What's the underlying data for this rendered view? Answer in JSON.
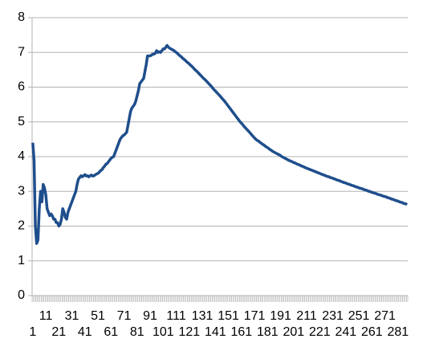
{
  "chart_data": {
    "type": "line",
    "color": "#1f4e8c",
    "ylim": [
      0,
      8
    ],
    "yticks": [
      0,
      1,
      2,
      3,
      4,
      5,
      6,
      7,
      8
    ],
    "grid": true,
    "categories": [
      "1",
      null,
      null,
      null,
      null,
      null,
      null,
      null,
      null,
      null,
      "11",
      null,
      null,
      null,
      null,
      null,
      null,
      null,
      null,
      null,
      "21",
      null,
      null,
      null,
      null,
      null,
      null,
      null,
      null,
      null,
      "31",
      null,
      null,
      null,
      null,
      null,
      null,
      null,
      null,
      null,
      "41",
      null,
      null,
      null,
      null,
      null,
      null,
      null,
      null,
      null,
      "51",
      null,
      null,
      null,
      null,
      null,
      null,
      null,
      null,
      null,
      "61",
      null,
      null,
      null,
      null,
      null,
      null,
      null,
      null,
      null,
      "71",
      null,
      null,
      null,
      null,
      null,
      null,
      null,
      null,
      null,
      "81",
      null,
      null,
      null,
      null,
      null,
      null,
      null,
      null,
      null,
      "91",
      null,
      null,
      null,
      null,
      null,
      null,
      null,
      null,
      null,
      "101",
      null,
      null,
      null,
      null,
      null,
      null,
      null,
      null,
      null,
      "111",
      null,
      null,
      null,
      null,
      null,
      null,
      null,
      null,
      null,
      "121",
      null,
      null,
      null,
      null,
      null,
      null,
      null,
      null,
      null,
      "131",
      null,
      null,
      null,
      null,
      null,
      null,
      null,
      null,
      null,
      "141",
      null,
      null,
      null,
      null,
      null,
      null,
      null,
      null,
      null,
      "151",
      null,
      null,
      null,
      null,
      null,
      null,
      null,
      null,
      null,
      "161",
      null,
      null,
      null,
      null,
      null,
      null,
      null,
      null,
      null,
      "171",
      null,
      null,
      null,
      null,
      null,
      null,
      null,
      null,
      null,
      "181",
      null,
      null,
      null,
      null,
      null,
      null,
      null,
      null,
      null,
      "191",
      null,
      null,
      null,
      null,
      null,
      null,
      null,
      null,
      null,
      "201",
      null,
      null,
      null,
      null,
      null,
      null,
      null,
      null,
      null,
      "211",
      null,
      null,
      null,
      null,
      null,
      null,
      null,
      null,
      null,
      "221",
      null,
      null,
      null,
      null,
      null,
      null,
      null,
      null,
      null,
      "231",
      null,
      null,
      null,
      null,
      null,
      null,
      null,
      null,
      null,
      "241",
      null,
      null,
      null,
      null,
      null,
      null,
      null,
      null,
      null,
      "251",
      null,
      null,
      null,
      null,
      null,
      null,
      null,
      null,
      null,
      "261",
      null,
      null,
      null,
      null,
      null,
      null,
      null,
      null,
      null,
      "271",
      null,
      null,
      null,
      null,
      null,
      null,
      null,
      null,
      null,
      "281",
      null,
      null,
      null,
      null,
      null,
      null,
      null
    ],
    "values": [
      4.4,
      3.9,
      2.0,
      1.5,
      1.6,
      2.5,
      3.0,
      2.7,
      3.2,
      3.1,
      2.9,
      2.5,
      2.4,
      2.3,
      2.35,
      2.3,
      2.2,
      2.2,
      2.1,
      2.1,
      2.0,
      2.05,
      2.2,
      2.5,
      2.4,
      2.25,
      2.2,
      2.4,
      2.5,
      2.6,
      2.7,
      2.8,
      2.9,
      3.0,
      3.2,
      3.35,
      3.4,
      3.45,
      3.42,
      3.45,
      3.48,
      3.44,
      3.45,
      3.42,
      3.45,
      3.47,
      3.44,
      3.45,
      3.48,
      3.5,
      3.52,
      3.55,
      3.6,
      3.62,
      3.68,
      3.72,
      3.78,
      3.8,
      3.85,
      3.9,
      3.95,
      3.98,
      4.0,
      4.1,
      4.2,
      4.3,
      4.4,
      4.5,
      4.55,
      4.6,
      4.62,
      4.66,
      4.7,
      4.9,
      5.1,
      5.3,
      5.4,
      5.45,
      5.5,
      5.6,
      5.75,
      5.9,
      6.1,
      6.15,
      6.2,
      6.25,
      6.45,
      6.65,
      6.9,
      6.9,
      6.9,
      6.92,
      6.95,
      6.95,
      6.98,
      7.05,
      7.0,
      7.02,
      7.0,
      7.05,
      7.1,
      7.1,
      7.15,
      7.2,
      7.15,
      7.12,
      7.1,
      7.08,
      7.06,
      7.03,
      7.0,
      6.97,
      6.93,
      6.9,
      6.87,
      6.83,
      6.8,
      6.77,
      6.73,
      6.7,
      6.67,
      6.63,
      6.6,
      6.56,
      6.52,
      6.48,
      6.45,
      6.41,
      6.37,
      6.33,
      6.29,
      6.25,
      6.22,
      6.18,
      6.14,
      6.1,
      6.06,
      6.02,
      5.97,
      5.93,
      5.89,
      5.85,
      5.81,
      5.77,
      5.73,
      5.68,
      5.64,
      5.6,
      5.55,
      5.5,
      5.45,
      5.4,
      5.35,
      5.3,
      5.25,
      5.2,
      5.15,
      5.1,
      5.05,
      5.0,
      4.96,
      4.92,
      4.87,
      4.83,
      4.79,
      4.75,
      4.71,
      4.67,
      4.62,
      4.58,
      4.54,
      4.5,
      4.47,
      4.45,
      4.42,
      4.39,
      4.36,
      4.34,
      4.31,
      4.28,
      4.26,
      4.23,
      4.2,
      4.18,
      4.15,
      4.13,
      4.11,
      4.09,
      4.07,
      4.05,
      4.03,
      4.0,
      3.98,
      3.96,
      3.94,
      3.92,
      3.9,
      3.88,
      3.87,
      3.85,
      3.83,
      3.82,
      3.8,
      3.78,
      3.77,
      3.75,
      3.73,
      3.72,
      3.7,
      3.68,
      3.67,
      3.65,
      3.64,
      3.62,
      3.61,
      3.59,
      3.58,
      3.56,
      3.55,
      3.53,
      3.52,
      3.5,
      3.49,
      3.47,
      3.46,
      3.44,
      3.43,
      3.42,
      3.4,
      3.39,
      3.38,
      3.36,
      3.35,
      3.33,
      3.32,
      3.31,
      3.29,
      3.28,
      3.26,
      3.25,
      3.24,
      3.22,
      3.21,
      3.2,
      3.18,
      3.17,
      3.16,
      3.14,
      3.13,
      3.12,
      3.1,
      3.09,
      3.08,
      3.07,
      3.05,
      3.04,
      3.03,
      3.01,
      3.0,
      2.99,
      2.97,
      2.96,
      2.95,
      2.94,
      2.92,
      2.91,
      2.9,
      2.89,
      2.87,
      2.86,
      2.85,
      2.84,
      2.82,
      2.81,
      2.8,
      2.78,
      2.77,
      2.76,
      2.74,
      2.73,
      2.72,
      2.7,
      2.69,
      2.68,
      2.66,
      2.65,
      2.64,
      2.62
    ]
  }
}
